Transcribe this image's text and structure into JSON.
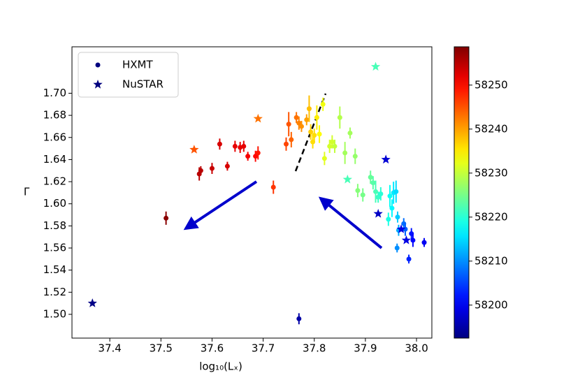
{
  "chart_data": {
    "type": "scatter",
    "xlabel": "log₁₀(Lₓ)",
    "ylabel": "Γ",
    "xlim": [
      37.326,
      38.03
    ],
    "ylim": [
      1.4785,
      1.742
    ],
    "xticks": [
      37.4,
      37.5,
      37.6,
      37.7,
      37.8,
      37.9,
      {
        "value": 38.0,
        "label": "38.0"
      }
    ],
    "yticks": [
      {
        "value": 1.5,
        "label": "1.50"
      },
      1.52,
      1.54,
      1.56,
      1.58,
      {
        "value": 1.6,
        "label": "1.60"
      },
      1.62,
      1.64,
      1.66,
      1.68,
      {
        "value": 1.7,
        "label": "1.70"
      }
    ],
    "colormap": "jet",
    "clim": [
      58192.5,
      58258.7
    ],
    "cticks": [
      58200,
      58210,
      58220,
      58230,
      58240,
      58250
    ],
    "legend": "upper left",
    "series": [
      {
        "name": "HXMT",
        "marker": "circle",
        "color": "#00007f",
        "x": [
          37.51,
          37.575,
          37.578,
          37.6,
          37.615,
          37.63,
          37.645,
          37.655,
          37.662,
          37.67,
          37.685,
          37.69,
          37.72,
          37.745,
          37.75,
          37.755,
          37.765,
          37.77,
          37.775,
          37.785,
          37.79,
          37.793,
          37.797,
          37.8,
          37.805,
          37.81,
          37.817,
          37.82,
          37.83,
          37.835,
          37.84,
          37.85,
          37.86,
          37.87,
          37.88,
          37.885,
          37.895,
          37.91,
          37.915,
          37.92,
          37.925,
          37.93,
          37.945,
          37.948,
          37.952,
          37.955,
          37.96,
          37.963,
          37.965,
          37.962,
          37.975,
          37.978,
          37.985,
          37.99,
          37.993,
          38.015,
          37.77
        ],
        "y": [
          1.587,
          1.627,
          1.63,
          1.632,
          1.654,
          1.634,
          1.652,
          1.651,
          1.652,
          1.643,
          1.643,
          1.646,
          1.615,
          1.654,
          1.672,
          1.658,
          1.678,
          1.673,
          1.67,
          1.676,
          1.686,
          1.665,
          1.656,
          1.662,
          1.678,
          1.663,
          1.69,
          1.641,
          1.652,
          1.656,
          1.652,
          1.678,
          1.646,
          1.664,
          1.643,
          1.612,
          1.608,
          1.624,
          1.619,
          1.611,
          1.606,
          1.609,
          1.586,
          1.607,
          1.596,
          1.61,
          1.611,
          1.588,
          1.576,
          1.56,
          1.582,
          1.577,
          1.55,
          1.573,
          1.567,
          1.565,
          1.496
        ],
        "c": [
          58258,
          58255,
          58255,
          58254,
          58253,
          58253,
          58252,
          58252,
          58252,
          58251,
          58250,
          58249,
          58247,
          58246,
          58245,
          58244,
          58243,
          58242,
          58241,
          58240,
          58238,
          58237,
          58236,
          58236,
          58235,
          58234,
          58233,
          58232,
          58231,
          58231,
          58230,
          58229,
          58228,
          58228,
          58227,
          58226,
          58225,
          58224,
          58223,
          58222,
          58221,
          58220,
          58219,
          58218,
          58217,
          58216,
          58215,
          58214,
          58212,
          58210,
          58208,
          58207,
          58203,
          58202,
          58201,
          58200,
          58195
        ],
        "errors": [
          0.006,
          0.006,
          0.004,
          0.005,
          0.005,
          0.004,
          0.005,
          0.005,
          0.005,
          0.004,
          0.005,
          0.006,
          0.006,
          0.006,
          0.011,
          0.007,
          0.005,
          0.006,
          0.005,
          0.005,
          0.012,
          0.007,
          0.006,
          0.006,
          0.011,
          0.008,
          0.006,
          0.006,
          0.006,
          0.006,
          0.006,
          0.01,
          0.01,
          0.005,
          0.007,
          0.006,
          0.006,
          0.006,
          0.006,
          0.01,
          0.005,
          0.006,
          0.006,
          0.01,
          0.008,
          0.01,
          0.01,
          0.005,
          0.005,
          0.004,
          0.005,
          0.006,
          0.004,
          0.005,
          0.006,
          0.004,
          0.005
        ]
      },
      {
        "name": "NuSTAR",
        "marker": "star",
        "color": "#00007f",
        "x": [
          37.366,
          37.565,
          37.69,
          37.92,
          37.865,
          37.94,
          37.925,
          37.97,
          37.98
        ],
        "y": [
          1.51,
          1.649,
          1.677,
          1.724,
          1.622,
          1.64,
          1.591,
          1.577,
          1.567
        ],
        "c": [
          58193,
          58245,
          58243,
          58222,
          58222,
          58198,
          58197,
          58199,
          58199
        ]
      }
    ]
  }
}
